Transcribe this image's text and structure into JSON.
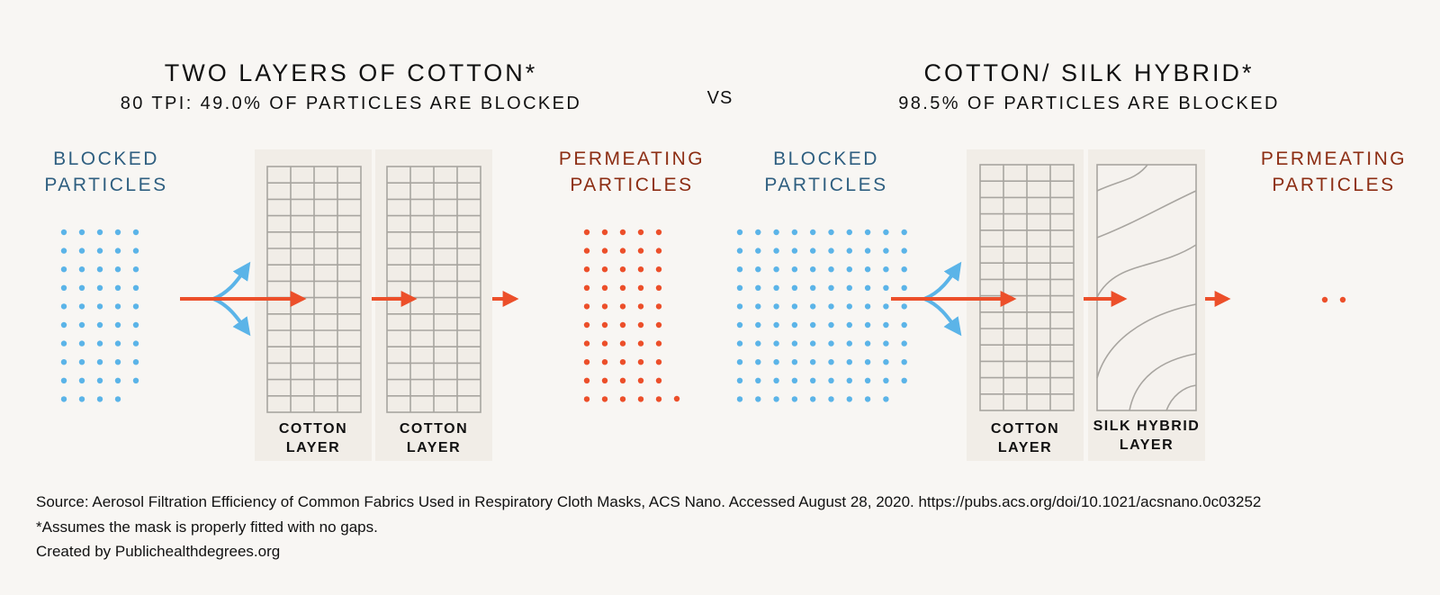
{
  "left": {
    "title": "TWO LAYERS OF COTTON*",
    "subtitle": "80 TPI: 49.0% OF PARTICLES ARE BLOCKED",
    "blocked_label": [
      "BLOCKED",
      "PARTICLES"
    ],
    "permeating_label": [
      "PERMEATING",
      "PARTICLES"
    ],
    "layers": [
      {
        "label": [
          "COTTON",
          "LAYER"
        ]
      },
      {
        "label": [
          "COTTON",
          "LAYER"
        ]
      }
    ]
  },
  "vs": "VS",
  "right": {
    "title": "COTTON/ SILK HYBRID*",
    "subtitle": "98.5% OF PARTICLES ARE BLOCKED",
    "blocked_label": [
      "BLOCKED",
      "PARTICLES"
    ],
    "permeating_label": [
      "PERMEATING",
      "PARTICLES"
    ],
    "layers": [
      {
        "label": [
          "COTTON",
          "LAYER"
        ]
      },
      {
        "label": [
          "SILK HYBRID",
          "LAYER"
        ]
      }
    ]
  },
  "footer": {
    "source": "Source: Aerosol Filtration Efficiency of Common Fabrics Used in Respiratory Cloth Masks, ACS Nano. Accessed August 28, 2020. https://pubs.acs.org/doi/10.1021/acsnano.0c03252",
    "note": "*Assumes the mask is properly fitted with no gaps.",
    "credit": "Created by Publichealthdegrees.org"
  },
  "colors": {
    "blocked": "#5bb4e8",
    "permeating": "#ec4f2a",
    "panel": "#f1ede7",
    "grid": "#a8a5a0",
    "blocked_text": "#2f5f80",
    "permeating_text": "#8c2d13"
  }
}
